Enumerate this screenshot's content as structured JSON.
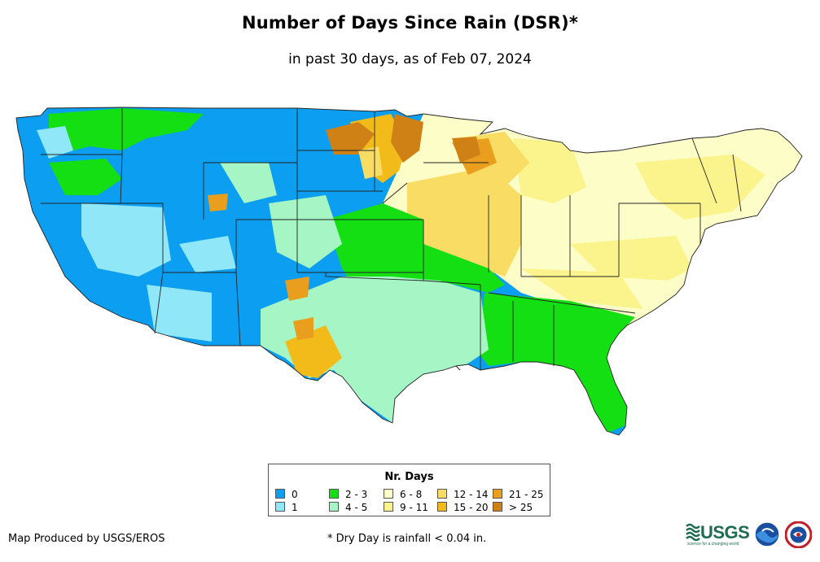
{
  "title": "Number of Days Since Rain (DSR)*",
  "subtitle": "in past 30 days, as of Feb 07, 2024",
  "legend": {
    "title": "Nr. Days",
    "items": [
      {
        "label": "0",
        "color": "#0c9ef0"
      },
      {
        "label": "1",
        "color": "#8fe7f8"
      },
      {
        "label": "2 - 3",
        "color": "#13df13"
      },
      {
        "label": "4 - 5",
        "color": "#a6f5c4"
      },
      {
        "label": "6 - 8",
        "color": "#fdfdc8"
      },
      {
        "label": "9 - 11",
        "color": "#fbf48c"
      },
      {
        "label": "12 - 14",
        "color": "#f8dc64"
      },
      {
        "label": "15 - 20",
        "color": "#f3bb1a"
      },
      {
        "label": "21 - 25",
        "color": "#e99e1d"
      },
      {
        "label": "> 25",
        "color": "#cf8116"
      }
    ]
  },
  "credit": "Map Produced by USGS/EROS",
  "footnote": "* Dry Day is rainfall < 0.04 in.",
  "logos": {
    "usgs": "USGS",
    "usgs_tagline": "science for a changing world",
    "noaa": "noaa-logo",
    "nws": "nws-logo"
  }
}
